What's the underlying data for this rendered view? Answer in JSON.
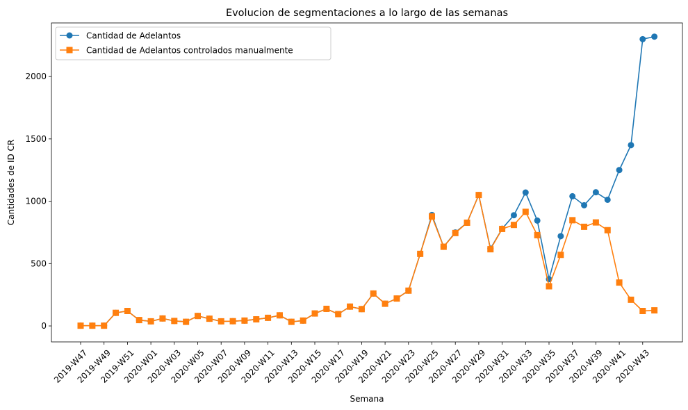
{
  "chart_data": {
    "type": "line",
    "title": "Evolucion de segmentaciones a lo largo de las semanas",
    "xlabel": "Semana",
    "ylabel": "Cantidades de ID CR",
    "x": [
      "2019-W47",
      "2019-W48",
      "2019-W49",
      "2019-W50",
      "2019-W51",
      "2019-W52",
      "2020-W01",
      "2020-W02",
      "2020-W03",
      "2020-W04",
      "2020-W05",
      "2020-W06",
      "2020-W07",
      "2020-W08",
      "2020-W09",
      "2020-W10",
      "2020-W11",
      "2020-W12",
      "2020-W13",
      "2020-W14",
      "2020-W15",
      "2020-W16",
      "2020-W17",
      "2020-W18",
      "2020-W19",
      "2020-W20",
      "2020-W21",
      "2020-W22",
      "2020-W23",
      "2020-W24",
      "2020-W25",
      "2020-W26",
      "2020-W27",
      "2020-W28",
      "2020-W29",
      "2020-W30",
      "2020-W31",
      "2020-W32",
      "2020-W33",
      "2020-W34",
      "2020-W35",
      "2020-W36",
      "2020-W37",
      "2020-W38",
      "2020-W39",
      "2020-W40",
      "2020-W41",
      "2020-W42",
      "2020-W43",
      "2020-W44"
    ],
    "x_tick_labels": [
      "2019-W47",
      "2019-W49",
      "2019-W51",
      "2020-W01",
      "2020-W03",
      "2020-W05",
      "2020-W07",
      "2020-W09",
      "2020-W11",
      "2020-W13",
      "2020-W15",
      "2020-W17",
      "2020-W19",
      "2020-W21",
      "2020-W23",
      "2020-W25",
      "2020-W27",
      "2020-W29",
      "2020-W31",
      "2020-W33",
      "2020-W35",
      "2020-W37",
      "2020-W39",
      "2020-W41",
      "2020-W43"
    ],
    "y_ticks": [
      0,
      500,
      1000,
      1500,
      2000
    ],
    "ylim": [
      -128,
      2430
    ],
    "grid": false,
    "legend_position": "top-left",
    "series": [
      {
        "name": "Cantidad de Adelantos",
        "color": "#1f77b4",
        "marker": "circle",
        "values": [
          2,
          2,
          2,
          105,
          120,
          47,
          37,
          60,
          40,
          33,
          80,
          58,
          37,
          38,
          43,
          53,
          65,
          85,
          33,
          43,
          100,
          137,
          95,
          155,
          135,
          260,
          178,
          220,
          283,
          578,
          890,
          635,
          750,
          828,
          1050,
          620,
          780,
          888,
          1070,
          845,
          375,
          720,
          1040,
          968,
          1072,
          1012,
          1250,
          1450,
          2300,
          2320
        ]
      },
      {
        "name": "Cantidad de Adelantos controlados manualmente",
        "color": "#ff7f0e",
        "marker": "square",
        "values": [
          2,
          2,
          2,
          105,
          120,
          47,
          37,
          60,
          40,
          33,
          80,
          58,
          37,
          38,
          43,
          53,
          65,
          85,
          33,
          43,
          100,
          137,
          95,
          155,
          135,
          260,
          178,
          220,
          283,
          578,
          878,
          635,
          745,
          828,
          1050,
          615,
          778,
          810,
          915,
          728,
          318,
          570,
          848,
          795,
          830,
          768,
          348,
          210,
          120,
          125
        ]
      }
    ]
  }
}
